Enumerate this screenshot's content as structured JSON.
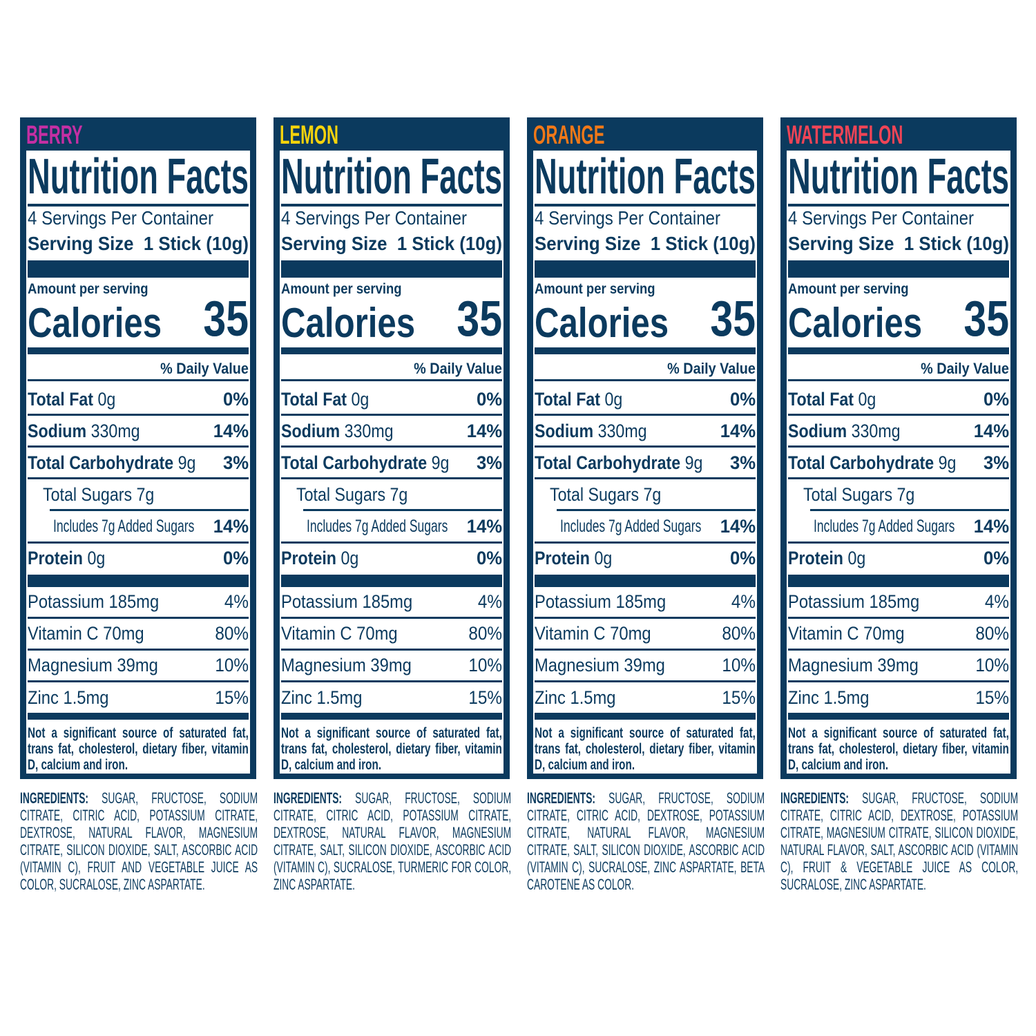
{
  "colors": {
    "navy": "#0b3a5e"
  },
  "label": {
    "title": "Nutrition Facts",
    "servings_per_container": "4 Servings Per Container",
    "serving_size_label": "Serving Size",
    "serving_size_value": "1 Stick (10g)",
    "amount_per_serving": "Amount per serving",
    "calories_label": "Calories",
    "calories_value": "35",
    "daily_value_header": "% Daily Value",
    "nutrients": [
      {
        "name": "Total Fat",
        "amount": "0g",
        "dv": "0%"
      },
      {
        "name": "Sodium",
        "amount": "330mg",
        "dv": "14%"
      },
      {
        "name": "Total Carbohydrate",
        "amount": "9g",
        "dv": "3%"
      },
      {
        "name": "Total Sugars 7g",
        "amount": "",
        "dv": ""
      },
      {
        "name": "Includes 7g Added Sugars",
        "amount": "",
        "dv": "14%"
      },
      {
        "name": "Protein",
        "amount": "0g",
        "dv": "0%"
      }
    ],
    "vitamins": [
      {
        "name": "Potassium 185mg",
        "dv": "4%"
      },
      {
        "name": "Vitamin C 70mg",
        "dv": "80%"
      },
      {
        "name": "Magnesium 39mg",
        "dv": "10%"
      },
      {
        "name": "Zinc 1.5mg",
        "dv": "15%"
      }
    ],
    "footnote": "Not a significant source of saturated fat, trans fat, cholesterol, dietary fiber, vitamin D, calcium and iron."
  },
  "ingredients_label": "INGREDIENTS:",
  "flavors": [
    {
      "name": "BERRY",
      "color": "#c42fa3",
      "ingredients": "SUGAR, FRUCTOSE, SODIUM CITRATE, CITRIC ACID, POTASSIUM CITRATE, DEXTROSE, NATURAL FLAVOR, MAGNESIUM CITRATE, SILICON DIOXIDE, SALT, ASCORBIC ACID (VITAMIN C), FRUIT AND VEGETABLE JUICE AS COLOR, SUCRALOSE, ZINC ASPARTATE."
    },
    {
      "name": "LEMON",
      "color": "#f6d30c",
      "ingredients": "SUGAR, FRUCTOSE, SODIUM CITRATE, CITRIC ACID, POTASSIUM CITRATE, DEXTROSE, NATURAL FLAVOR, MAGNESIUM CITRATE, SALT, SILICON DIOXIDE, ASCORBIC ACID (VITAMIN C), SUCRALOSE, TURMERIC FOR COLOR, ZINC ASPARTATE."
    },
    {
      "name": "ORANGE",
      "color": "#f07818",
      "ingredients": "SUGAR, FRUCTOSE, SODIUM CITRATE, CITRIC ACID, DEXTROSE, POTASSIUM CITRATE, NATURAL FLAVOR, MAGNESIUM CITRATE, SALT, SILICON DIOXIDE, ASCORBIC ACID (VITAMIN C), SUCRALOSE, ZINC ASPARTATE, BETA CAROTENE AS COLOR."
    },
    {
      "name": "WATERMELON",
      "color": "#ef4456",
      "ingredients": "SUGAR, FRUCTOSE, SODIUM CITRATE, CITRIC ACID, DEXTROSE, POTASSIUM CITRATE, MAGNESIUM CITRATE, SILICON DIOXIDE, NATURAL FLAVOR, SALT, ASCORBIC ACID (VITAMIN C), FRUIT & VEGETABLE JUICE AS COLOR, SUCRALOSE, ZINC ASPARTATE."
    }
  ]
}
